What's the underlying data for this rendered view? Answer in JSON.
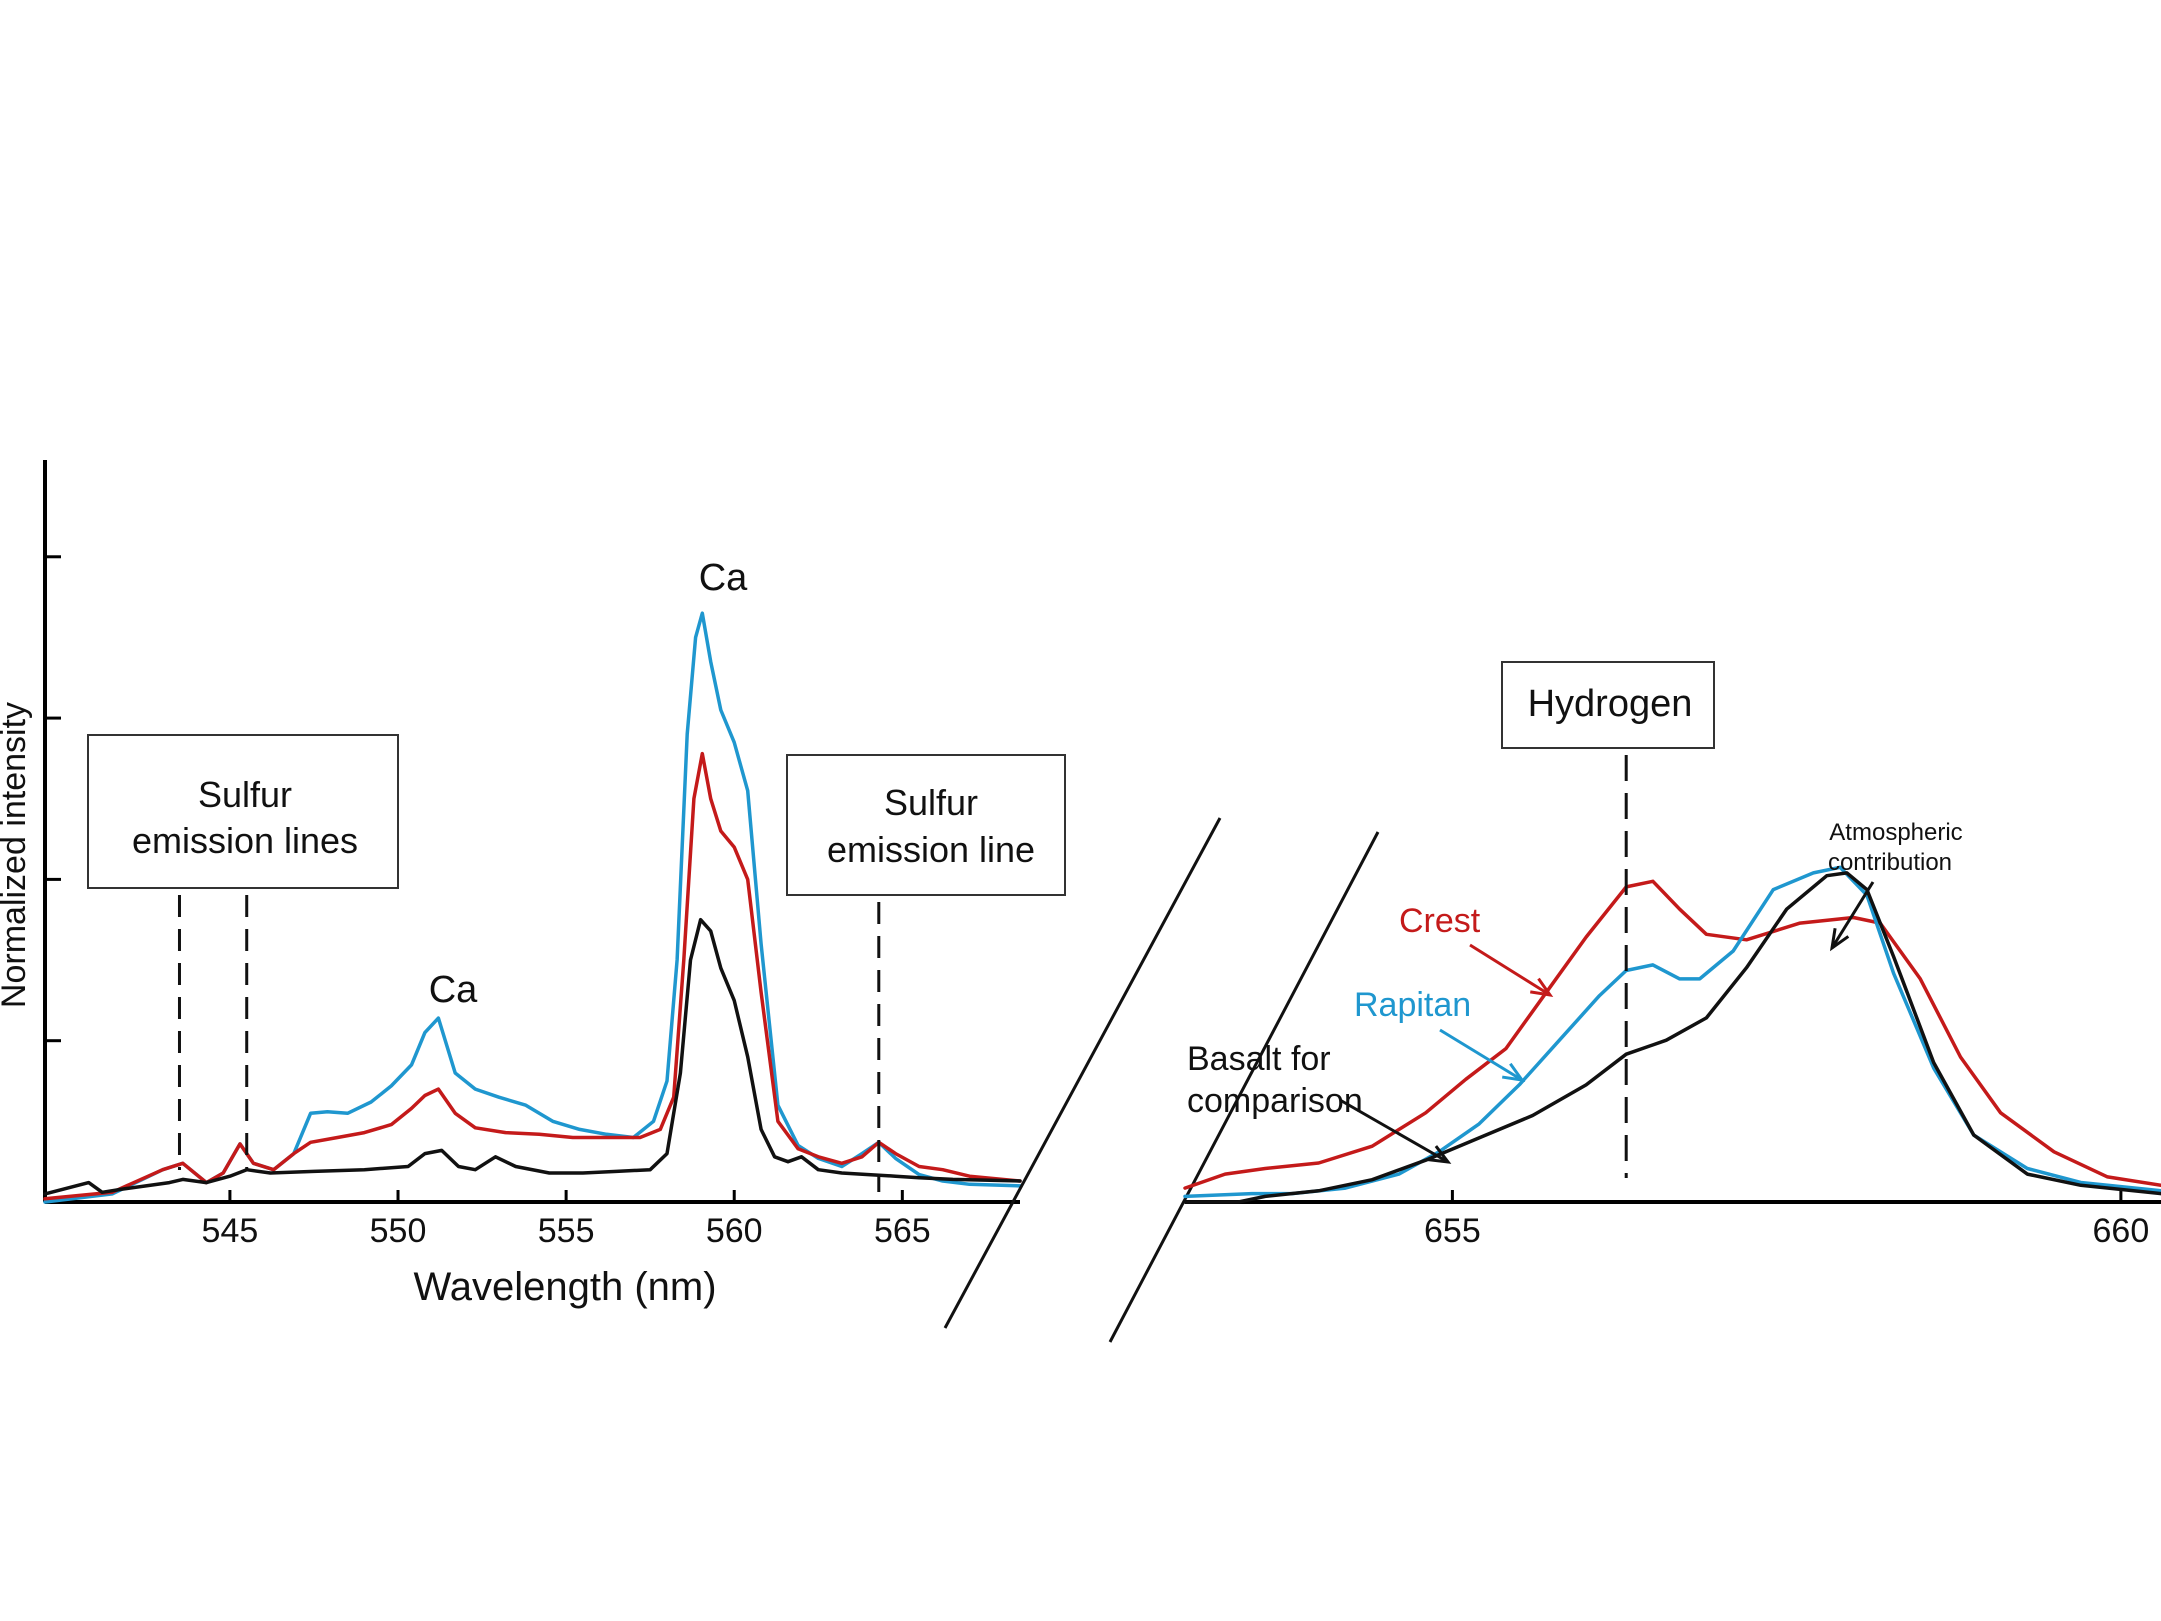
{
  "colors": {
    "crest": "#c41a1a",
    "rapitan": "#1f97cf",
    "basalt": "#111111",
    "axis": "#000000",
    "background": "#ffffff"
  },
  "chart_data": [
    {
      "type": "line",
      "panel": "left",
      "title": "",
      "xlabel": "Wavelength (nm)",
      "ylabel": "Normalized intensity",
      "xlim": [
        539.5,
        568.5
      ],
      "ylim": [
        0,
        4.6
      ],
      "xticks": [
        545,
        550,
        555,
        560,
        565
      ],
      "yticks": [
        1,
        2,
        3,
        4
      ],
      "ytick_labels": false,
      "grid": false,
      "series": [
        {
          "key": "rapitan",
          "x": [
            539.5,
            541.5,
            543,
            543.6,
            544.3,
            544.8,
            545.3,
            545.7,
            546.3,
            546.9,
            547.4,
            547.9,
            548.5,
            549.2,
            549.8,
            550.4,
            550.8,
            551.2,
            551.7,
            552.3,
            553.0,
            553.8,
            554.6,
            555.4,
            556.2,
            557.0,
            557.6,
            558.0,
            558.3,
            558.6,
            558.85,
            559.05,
            559.3,
            559.6,
            560.0,
            560.4,
            560.8,
            561.3,
            561.9,
            562.5,
            563.2,
            563.8,
            564.3,
            564.8,
            565.5,
            566.2,
            567.0,
            568.5
          ],
          "y": [
            0.0,
            0.05,
            0.2,
            0.24,
            0.12,
            0.18,
            0.36,
            0.24,
            0.2,
            0.3,
            0.55,
            0.56,
            0.55,
            0.62,
            0.72,
            0.85,
            1.05,
            1.14,
            0.8,
            0.7,
            0.65,
            0.6,
            0.5,
            0.45,
            0.42,
            0.4,
            0.5,
            0.75,
            1.5,
            2.9,
            3.5,
            3.65,
            3.35,
            3.05,
            2.85,
            2.55,
            1.6,
            0.6,
            0.35,
            0.27,
            0.22,
            0.3,
            0.37,
            0.27,
            0.17,
            0.13,
            0.11,
            0.1
          ]
        },
        {
          "key": "crest",
          "x": [
            539.5,
            541.5,
            543,
            543.6,
            544.3,
            544.8,
            545.3,
            545.7,
            546.3,
            546.9,
            547.4,
            548.2,
            549.0,
            549.8,
            550.4,
            550.8,
            551.2,
            551.7,
            552.3,
            553.2,
            554.2,
            555.2,
            556.2,
            557.2,
            557.8,
            558.2,
            558.5,
            558.8,
            559.05,
            559.3,
            559.6,
            560.0,
            560.4,
            560.8,
            561.3,
            561.9,
            562.5,
            563.2,
            563.8,
            564.3,
            564.8,
            565.5,
            566.2,
            567.0,
            568.5
          ],
          "y": [
            0.02,
            0.06,
            0.2,
            0.24,
            0.12,
            0.18,
            0.36,
            0.24,
            0.2,
            0.3,
            0.37,
            0.4,
            0.43,
            0.48,
            0.58,
            0.66,
            0.7,
            0.55,
            0.46,
            0.43,
            0.42,
            0.4,
            0.4,
            0.4,
            0.45,
            0.65,
            1.5,
            2.5,
            2.78,
            2.5,
            2.3,
            2.2,
            2.0,
            1.3,
            0.5,
            0.33,
            0.28,
            0.24,
            0.28,
            0.37,
            0.3,
            0.22,
            0.2,
            0.16,
            0.13
          ]
        },
        {
          "key": "basalt",
          "x": [
            539.5,
            540.8,
            541.2,
            541.8,
            542.5,
            543.2,
            543.6,
            544.3,
            545.0,
            545.5,
            546.2,
            547.5,
            549.0,
            550.3,
            550.8,
            551.3,
            551.8,
            552.3,
            552.9,
            553.5,
            554.5,
            555.5,
            556.5,
            557.5,
            558.0,
            558.4,
            558.7,
            559.0,
            559.3,
            559.6,
            560.0,
            560.4,
            560.8,
            561.2,
            561.6,
            562.0,
            562.5,
            563.2,
            564.0,
            564.8,
            565.5,
            566.5,
            568.5
          ],
          "y": [
            0.05,
            0.12,
            0.06,
            0.08,
            0.1,
            0.12,
            0.14,
            0.12,
            0.16,
            0.2,
            0.18,
            0.19,
            0.2,
            0.22,
            0.3,
            0.32,
            0.22,
            0.2,
            0.28,
            0.22,
            0.18,
            0.18,
            0.19,
            0.2,
            0.3,
            0.8,
            1.5,
            1.75,
            1.68,
            1.45,
            1.25,
            0.9,
            0.45,
            0.28,
            0.25,
            0.28,
            0.2,
            0.18,
            0.17,
            0.16,
            0.15,
            0.14,
            0.13
          ]
        }
      ],
      "annotations": [
        {
          "key": "ca_peak_1",
          "text": "Ca"
        },
        {
          "key": "ca_peak_2",
          "text": "Ca"
        },
        {
          "key": "sulfur_lines_box",
          "text_lines": [
            "Sulfur",
            "emission lines"
          ],
          "marker_x": [
            543.5,
            545.5
          ]
        },
        {
          "key": "sulfur_line_box",
          "text_lines": [
            "Sulfur",
            "emission line"
          ],
          "marker_x": [
            564.3
          ]
        }
      ]
    },
    {
      "type": "line",
      "panel": "right",
      "title": "",
      "xlabel": "",
      "ylabel": "",
      "xlim": [
        653.0,
        660.3
      ],
      "ylim": [
        0,
        1.8
      ],
      "xticks": [
        655,
        660
      ],
      "grid": false,
      "series": [
        {
          "key": "crest",
          "name": "Crest",
          "x": [
            653.0,
            653.3,
            653.6,
            654.0,
            654.4,
            654.8,
            655.1,
            655.4,
            655.7,
            656.0,
            656.3,
            656.5,
            656.7,
            656.9,
            657.2,
            657.6,
            658.0,
            658.2,
            658.5,
            658.8,
            659.1,
            659.5,
            659.9,
            660.3
          ],
          "y": [
            0.05,
            0.1,
            0.12,
            0.14,
            0.2,
            0.32,
            0.44,
            0.55,
            0.75,
            0.95,
            1.13,
            1.15,
            1.05,
            0.96,
            0.94,
            1.0,
            1.02,
            1.0,
            0.8,
            0.52,
            0.32,
            0.18,
            0.09,
            0.06
          ]
        },
        {
          "key": "rapitan",
          "name": "Rapitan",
          "x": [
            653.0,
            653.5,
            653.8,
            654.2,
            654.6,
            654.9,
            655.2,
            655.5,
            655.8,
            656.1,
            656.3,
            656.5,
            656.7,
            656.85,
            657.1,
            657.4,
            657.7,
            657.9,
            658.1,
            658.3,
            658.6,
            658.9,
            659.3,
            659.7,
            660.3
          ],
          "y": [
            0.02,
            0.03,
            0.03,
            0.05,
            0.1,
            0.18,
            0.28,
            0.42,
            0.58,
            0.74,
            0.83,
            0.85,
            0.8,
            0.8,
            0.9,
            1.12,
            1.18,
            1.2,
            1.1,
            0.82,
            0.48,
            0.24,
            0.12,
            0.07,
            0.04
          ]
        },
        {
          "key": "basalt",
          "name": "Basalt for comparison",
          "x": [
            653.0,
            653.4,
            653.6,
            654.0,
            654.4,
            654.8,
            655.2,
            655.6,
            656.0,
            656.3,
            656.6,
            656.9,
            657.2,
            657.5,
            657.8,
            657.95,
            658.1,
            658.3,
            658.6,
            658.9,
            659.3,
            659.7,
            660.3
          ],
          "y": [
            0.0,
            0.0,
            0.02,
            0.04,
            0.08,
            0.15,
            0.23,
            0.31,
            0.42,
            0.53,
            0.58,
            0.66,
            0.84,
            1.05,
            1.17,
            1.18,
            1.12,
            0.88,
            0.5,
            0.24,
            0.1,
            0.06,
            0.03
          ]
        }
      ],
      "annotations": [
        {
          "key": "hydrogen_box",
          "text": "Hydrogen",
          "marker_x": [
            656.3
          ]
        },
        {
          "key": "atmospheric_contribution",
          "text_lines": [
            "Atmospheric",
            "contribution"
          ]
        }
      ]
    }
  ]
}
